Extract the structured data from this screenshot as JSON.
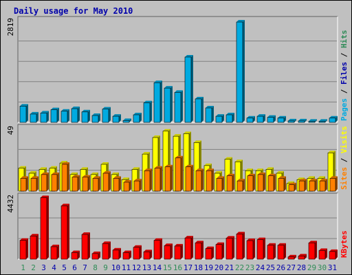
{
  "chart_data": {
    "type": "bar",
    "title": "Daily usage for May 2010",
    "colors": {
      "background": "#c0c0c0",
      "title": "#0000aa",
      "frame": "#808080",
      "grid": "#808080",
      "weekday_label": "#0000aa",
      "weekend_label": "#2e8b57",
      "pages": "#00aae0",
      "files": "#0000aa",
      "hits": "#2e8b57",
      "sites": "#ff8000",
      "visits": "#ffff00",
      "kbytes": "#ff0000"
    },
    "days": [
      "1",
      "2",
      "3",
      "4",
      "5",
      "6",
      "7",
      "8",
      "9",
      "10",
      "11",
      "12",
      "13",
      "14",
      "15",
      "16",
      "17",
      "18",
      "19",
      "20",
      "21",
      "22",
      "23",
      "24",
      "25",
      "26",
      "27",
      "28",
      "29",
      "30",
      "31"
    ],
    "weekend_days": [
      "1",
      "2",
      "8",
      "9",
      "15",
      "16",
      "22",
      "23",
      "29",
      "30"
    ],
    "panels": [
      {
        "id": "requests",
        "max_label": "2819",
        "ymax": 2819,
        "ylabel_parts": [
          {
            "text": "Pages",
            "color": "#00aae0"
          },
          {
            "text": " / ",
            "color": "#000000"
          },
          {
            "text": "Files",
            "color": "#0000aa"
          },
          {
            "text": " / ",
            "color": "#000000"
          },
          {
            "text": "Hits",
            "color": "#2e8b57"
          }
        ],
        "series": [
          {
            "name": "Pages",
            "color": "#00aae0",
            "values": [
              450,
              230,
              260,
              350,
              310,
              380,
              290,
              190,
              370,
              170,
              50,
              210,
              540,
              1100,
              950,
              830,
              1810,
              650,
              400,
              170,
              210,
              2780,
              120,
              170,
              140,
              120,
              40,
              40,
              30,
              30,
              120
            ]
          }
        ]
      },
      {
        "id": "visitors",
        "max_label": "49",
        "ymax": 49,
        "ylabel_parts": [
          {
            "text": "Sites",
            "color": "#ff8000"
          },
          {
            "text": " / ",
            "color": "#000000"
          },
          {
            "text": "Visits",
            "color": "#ffff00"
          }
        ],
        "series": [
          {
            "name": "Visits",
            "color": "#ffff00",
            "values": [
              18,
              14,
              17,
              18,
              22,
              13,
              17,
              13,
              21,
              13,
              9,
              17,
              29,
              42,
              47,
              43,
              45,
              38,
              20,
              14,
              25,
              23,
              16,
              16,
              17,
              14,
              6,
              9,
              10,
              10,
              30
            ]
          },
          {
            "name": "Sites",
            "color": "#ff8000",
            "values": [
              10,
              10,
              13,
              13,
              21,
              11,
              11,
              10,
              14,
              10,
              7,
              8,
              16,
              18,
              19,
              26,
              19,
              16,
              16,
              10,
              12,
              8,
              12,
              13,
              12,
              10,
              5,
              8,
              8,
              8,
              10
            ]
          }
        ]
      },
      {
        "id": "volume",
        "max_label": "4432",
        "ymax": 4432,
        "ylabel_parts": [
          {
            "text": "KBytes",
            "color": "#ff0000"
          }
        ],
        "series": [
          {
            "name": "KBytes",
            "color": "#ff0000",
            "values": [
              1350,
              1660,
              4410,
              890,
              3820,
              470,
              1770,
              400,
              1120,
              650,
              470,
              850,
              530,
              1350,
              970,
              940,
              1520,
              1170,
              760,
              1050,
              1510,
              1810,
              1330,
              1400,
              1000,
              1000,
              160,
              230,
              1170,
              620,
              550
            ]
          }
        ]
      }
    ]
  }
}
